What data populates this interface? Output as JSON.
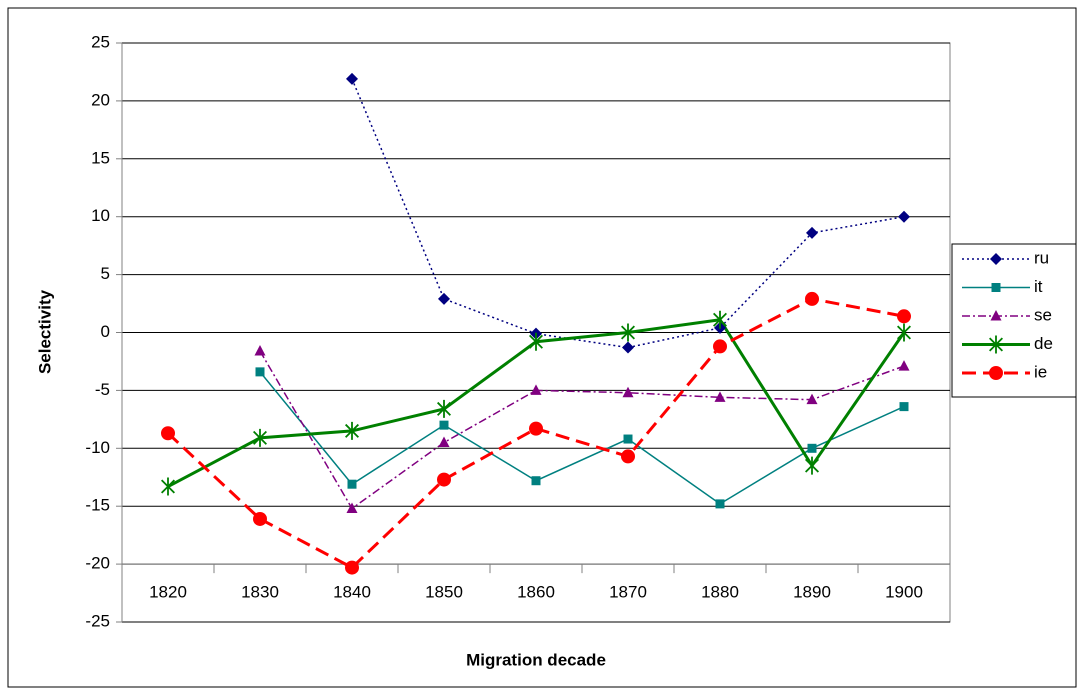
{
  "chart_data": {
    "type": "line",
    "x_label": "Migration decade",
    "y_label": "Selectivity",
    "categories": [
      "1820",
      "1830",
      "1840",
      "1850",
      "1860",
      "1870",
      "1880",
      "1890",
      "1900"
    ],
    "series": [
      {
        "name": "ru",
        "color": "#000080",
        "dash": "dotted",
        "marker": "diamond",
        "values": [
          null,
          null,
          21.9,
          2.9,
          -0.1,
          -1.3,
          0.4,
          8.6,
          10.0
        ]
      },
      {
        "name": "it",
        "color": "#008080",
        "dash": "solid",
        "marker": "square",
        "values": [
          null,
          -3.4,
          -13.1,
          -8.0,
          -12.8,
          -9.2,
          -14.8,
          -10.0,
          -6.4
        ]
      },
      {
        "name": "se",
        "color": "#800080",
        "dash": "dashdot",
        "marker": "triangle",
        "values": [
          null,
          -1.6,
          -15.2,
          -9.5,
          -5.0,
          -5.2,
          -5.6,
          -5.8,
          -2.9
        ]
      },
      {
        "name": "de",
        "color": "#008000",
        "dash": "solid-thick",
        "marker": "star",
        "values": [
          -13.3,
          -9.1,
          -8.5,
          -6.6,
          -0.8,
          0.0,
          1.1,
          -11.5,
          0.0
        ]
      },
      {
        "name": "ie",
        "color": "#FF0000",
        "dash": "dashed-thick",
        "marker": "circle",
        "values": [
          -8.7,
          -16.1,
          -20.3,
          -12.7,
          -8.3,
          -10.7,
          -1.2,
          2.9,
          1.4
        ]
      }
    ],
    "ylim": [
      -25,
      25
    ],
    "yticks": [
      -25,
      -20,
      -15,
      -10,
      -5,
      0,
      5,
      10,
      15,
      20,
      25
    ],
    "x_axis_crosses": -20,
    "grid": true,
    "legend": "right"
  }
}
